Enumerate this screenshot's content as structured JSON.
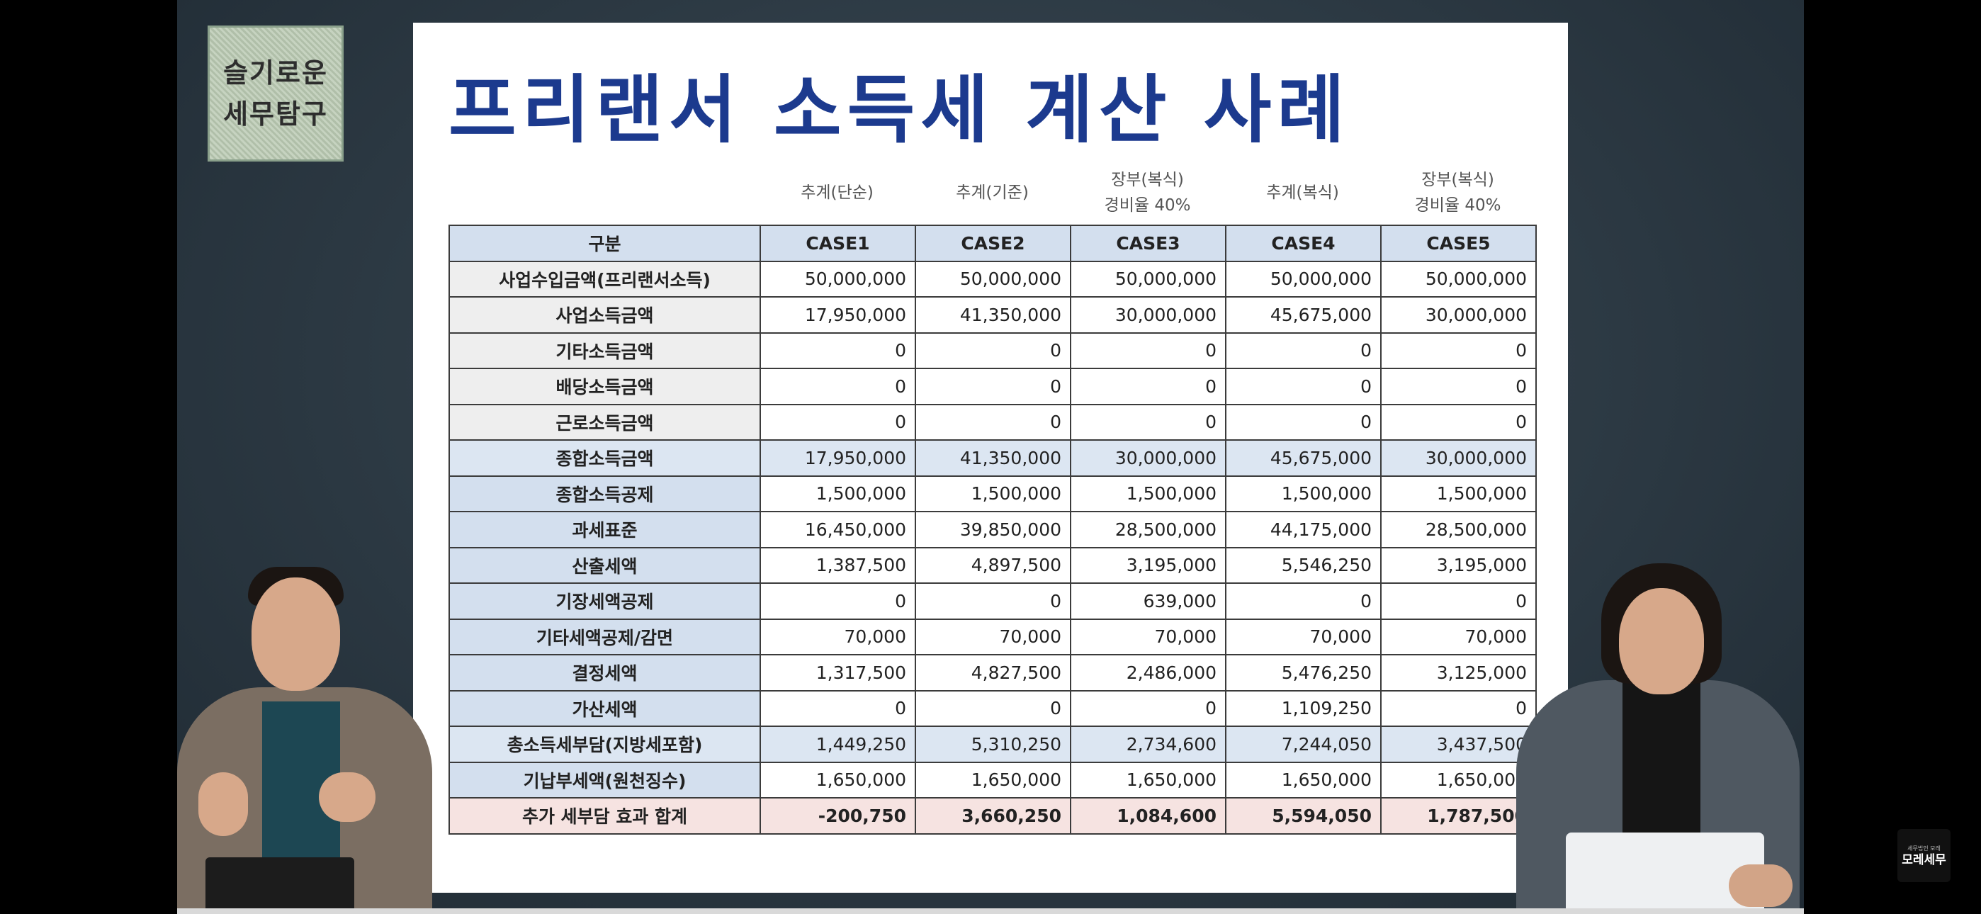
{
  "logo": {
    "line1": "슬기로운",
    "line2": "세무탐구"
  },
  "slide": {
    "title": "프리랜서 소득세 계산 사례",
    "column_headers": [
      {
        "case": "CASE1",
        "note": [
          "추계(단순)"
        ]
      },
      {
        "case": "CASE2",
        "note": [
          "추계(기준)"
        ]
      },
      {
        "case": "CASE3",
        "note": [
          "장부(복식)",
          "경비율 40%"
        ]
      },
      {
        "case": "CASE4",
        "note": [
          "추계(복식)"
        ]
      },
      {
        "case": "CASE5",
        "note": [
          "장부(복식)",
          "경비율 40%"
        ]
      }
    ],
    "table_header_label": "구분",
    "rows": [
      {
        "label": "사업수입금액(프리랜서소득)",
        "style": "plain",
        "values": [
          "50,000,000",
          "50,000,000",
          "50,000,000",
          "50,000,000",
          "50,000,000"
        ]
      },
      {
        "label": "사업소득금액",
        "style": "plain",
        "values": [
          "17,950,000",
          "41,350,000",
          "30,000,000",
          "45,675,000",
          "30,000,000"
        ]
      },
      {
        "label": "기타소득금액",
        "style": "plain",
        "values": [
          "0",
          "0",
          "0",
          "0",
          "0"
        ]
      },
      {
        "label": "배당소득금액",
        "style": "plain",
        "values": [
          "0",
          "0",
          "0",
          "0",
          "0"
        ]
      },
      {
        "label": "근로소득금액",
        "style": "plain",
        "values": [
          "0",
          "0",
          "0",
          "0",
          "0"
        ]
      },
      {
        "label": "종합소득금액",
        "style": "highlight",
        "values": [
          "17,950,000",
          "41,350,000",
          "30,000,000",
          "45,675,000",
          "30,000,000"
        ]
      },
      {
        "label": "종합소득공제",
        "style": "blue",
        "values": [
          "1,500,000",
          "1,500,000",
          "1,500,000",
          "1,500,000",
          "1,500,000"
        ]
      },
      {
        "label": "과세표준",
        "style": "blue",
        "values": [
          "16,450,000",
          "39,850,000",
          "28,500,000",
          "44,175,000",
          "28,500,000"
        ]
      },
      {
        "label": "산출세액",
        "style": "blue",
        "values": [
          "1,387,500",
          "4,897,500",
          "3,195,000",
          "5,546,250",
          "3,195,000"
        ]
      },
      {
        "label": "기장세액공제",
        "style": "blue",
        "values": [
          "0",
          "0",
          "639,000",
          "0",
          "0"
        ]
      },
      {
        "label": "기타세액공제/감면",
        "style": "blue",
        "values": [
          "70,000",
          "70,000",
          "70,000",
          "70,000",
          "70,000"
        ]
      },
      {
        "label": "결정세액",
        "style": "blue",
        "values": [
          "1,317,500",
          "4,827,500",
          "2,486,000",
          "5,476,250",
          "3,125,000"
        ]
      },
      {
        "label": "가산세액",
        "style": "blue",
        "values": [
          "0",
          "0",
          "0",
          "1,109,250",
          "0"
        ]
      },
      {
        "label": "총소득세부담(지방세포함)",
        "style": "highlight",
        "values": [
          "1,449,250",
          "5,310,250",
          "2,734,600",
          "7,244,050",
          "3,437,500"
        ]
      },
      {
        "label": "기납부세액(원천징수)",
        "style": "blue",
        "values": [
          "1,650,000",
          "1,650,000",
          "1,650,000",
          "1,650,000",
          "1,650,000"
        ]
      },
      {
        "label": "추가 세부담 효과 합계",
        "style": "total",
        "values": [
          "-200,750",
          "3,660,250",
          "1,084,600",
          "5,594,050",
          "1,787,500"
        ]
      }
    ]
  },
  "watermark": {
    "small": "세무법인 모레",
    "big": "모레세무"
  },
  "colors": {
    "title": "#1c3a8e",
    "header_fill": "#d3dfee",
    "highlight_fill": "#dce6f2",
    "total_fill": "#f6e3e1",
    "background": "#2c3943"
  }
}
